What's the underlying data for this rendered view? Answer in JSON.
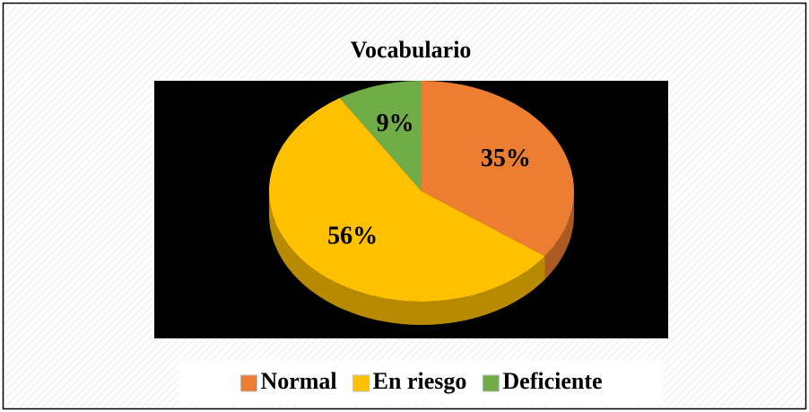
{
  "chart_data": {
    "type": "pie",
    "title": "Vocabulario",
    "categories": [
      "Normal",
      "En riesgo",
      "Deficiente"
    ],
    "values": [
      35,
      56,
      9
    ],
    "value_labels": [
      "35%",
      "56%",
      "9%"
    ],
    "colors": [
      "#ED7D31",
      "#FFC000",
      "#70AD47"
    ],
    "legend": "bottom"
  }
}
